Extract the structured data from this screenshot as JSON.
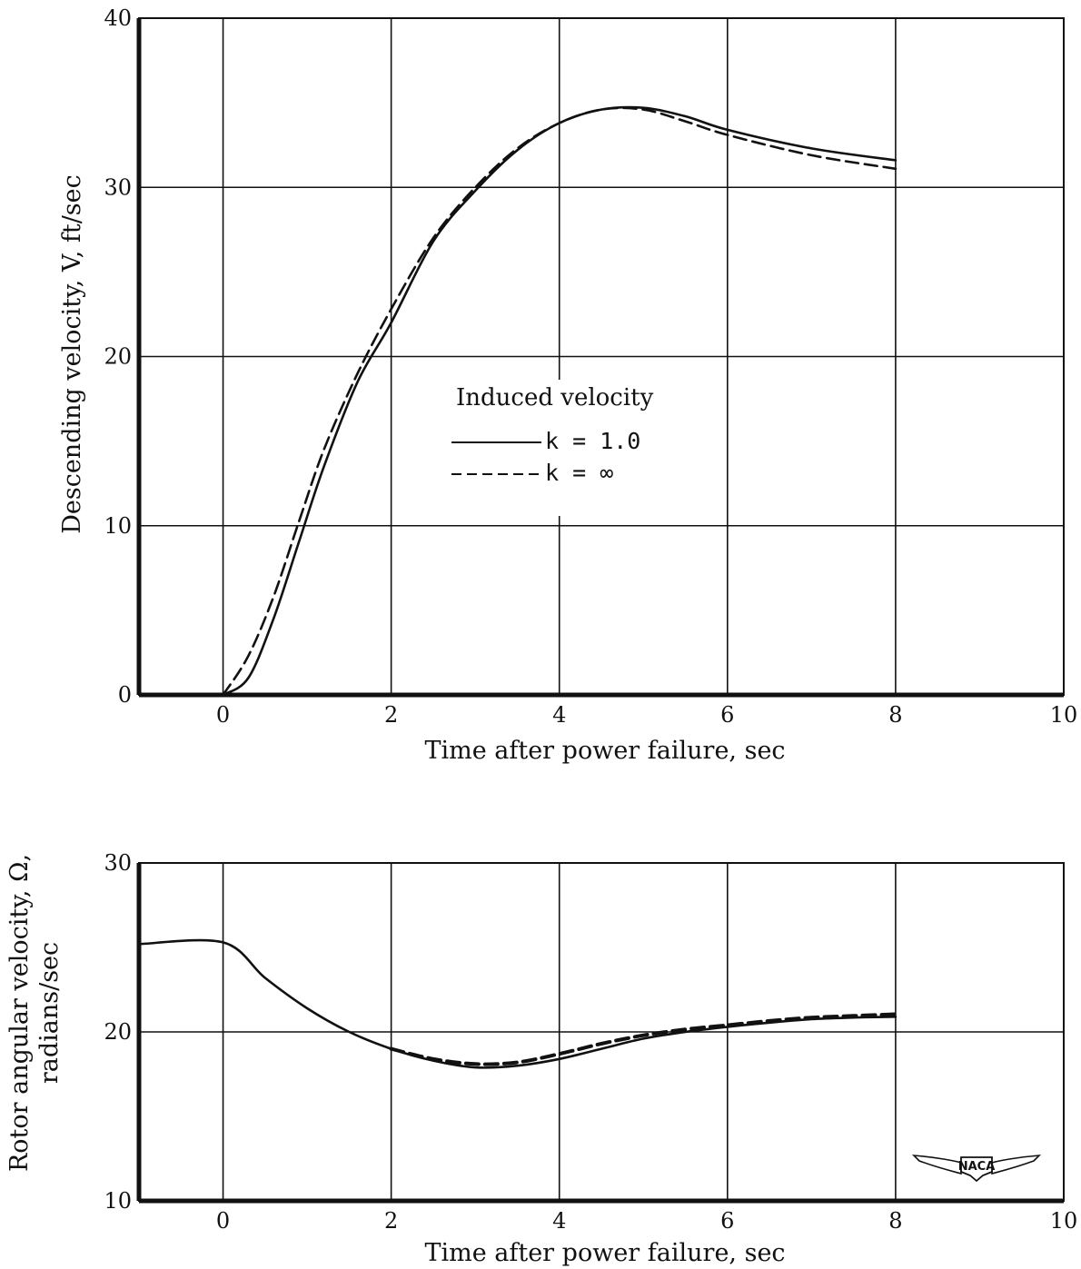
{
  "chart_data": [
    {
      "type": "line",
      "xlabel": "Time after power failure, sec",
      "ylabel": "Descending velocity,  V, ft/sec",
      "xlim": [
        -1,
        10
      ],
      "ylim": [
        0,
        40
      ],
      "x_ticks": [
        "0",
        "2",
        "4",
        "6",
        "8",
        "10"
      ],
      "y_ticks": [
        "0",
        "10",
        "20",
        "30",
        "40"
      ],
      "grid": true,
      "legend": {
        "title": "Induced velocity",
        "placement": "center",
        "entries": [
          {
            "label": "k = 1.0",
            "style": "solid"
          },
          {
            "label": "k =  ∞",
            "style": "dashed"
          }
        ]
      },
      "series": [
        {
          "name": "k = 1.0",
          "style": "solid",
          "x": [
            0,
            0.3,
            0.6,
            0.9,
            1.2,
            1.6,
            2.0,
            2.5,
            3.0,
            3.5,
            4.0,
            4.5,
            5.0,
            5.5,
            6.0,
            7.0,
            8.0
          ],
          "y": [
            0.0,
            1.0,
            4.5,
            9.0,
            13.5,
            18.5,
            22.0,
            26.8,
            29.8,
            32.2,
            33.8,
            34.6,
            34.7,
            34.2,
            33.4,
            32.3,
            31.6
          ]
        },
        {
          "name": "k =  ∞",
          "style": "dashed",
          "x": [
            0,
            0.3,
            0.6,
            0.9,
            1.2,
            1.6,
            2.0,
            2.5,
            3.0,
            3.5,
            4.0,
            4.5,
            5.0,
            5.5,
            6.0,
            7.0,
            8.0
          ],
          "y": [
            0.0,
            2.3,
            5.8,
            10.2,
            14.5,
            19.0,
            22.8,
            27.0,
            30.0,
            32.3,
            33.8,
            34.6,
            34.6,
            33.9,
            33.1,
            31.9,
            31.1
          ]
        }
      ]
    },
    {
      "type": "line",
      "xlabel": "Time after power failure, sec",
      "ylabel": "Rotor angular velocity,  Ω,",
      "ylabel2": "radians/sec",
      "xlim": [
        -1,
        10
      ],
      "ylim": [
        10,
        30
      ],
      "x_ticks": [
        "0",
        "2",
        "4",
        "6",
        "8",
        "10"
      ],
      "y_ticks": [
        "10",
        "20",
        "30"
      ],
      "grid": true,
      "series": [
        {
          "name": "k = 1.0",
          "style": "solid",
          "x": [
            -1.0,
            0.0,
            0.5,
            1.0,
            1.5,
            2.0,
            2.5,
            3.0,
            3.5,
            4.0,
            4.5,
            5.0,
            5.5,
            6.0,
            6.5,
            7.0,
            7.5,
            8.0
          ],
          "y": [
            25.2,
            25.3,
            23.2,
            21.4,
            20.0,
            19.0,
            18.3,
            17.9,
            18.0,
            18.4,
            19.0,
            19.6,
            20.0,
            20.3,
            20.55,
            20.75,
            20.85,
            20.9
          ]
        },
        {
          "name": "k =  ∞",
          "style": "dashed",
          "x": [
            2.0,
            2.5,
            3.0,
            3.5,
            4.0,
            4.5,
            5.0,
            5.5,
            6.0,
            6.5,
            7.0,
            7.5,
            8.0
          ],
          "y": [
            19.0,
            18.4,
            18.1,
            18.2,
            18.7,
            19.3,
            19.8,
            20.15,
            20.4,
            20.65,
            20.85,
            20.95,
            21.05
          ]
        }
      ]
    }
  ],
  "logo": {
    "text": "NACA",
    "icon": "naca-wings-logo"
  }
}
